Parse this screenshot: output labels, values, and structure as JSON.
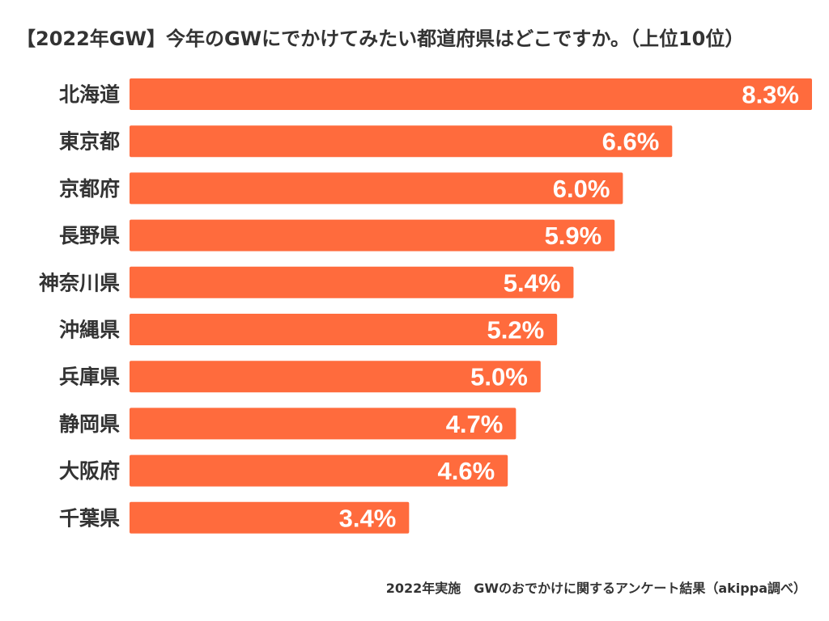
{
  "chart_data": {
    "type": "bar",
    "orientation": "horizontal",
    "title": "【2022年GW】今年のGWにでかけてみたい都道府県はどこですか。（上位10位）",
    "categories": [
      "北海道",
      "東京都",
      "京都府",
      "長野県",
      "神奈川県",
      "沖縄県",
      "兵庫県",
      "静岡県",
      "大阪府",
      "千葉県"
    ],
    "values": [
      8.3,
      6.6,
      6.0,
      5.9,
      5.4,
      5.2,
      5.0,
      4.7,
      4.6,
      3.4
    ],
    "value_labels": [
      "8.3%",
      "6.6%",
      "6.0%",
      "5.9%",
      "5.4%",
      "5.2%",
      "5.0%",
      "4.7%",
      "4.6%",
      "3.4%"
    ],
    "unit": "%",
    "xlim": [
      0,
      8.3
    ],
    "grid": false,
    "bar_color": "#ff6b3d",
    "label_color": "#ffffff"
  },
  "source_note": "2022年実施　GWのおでかけに関するアンケート結果（akippa調べ）"
}
